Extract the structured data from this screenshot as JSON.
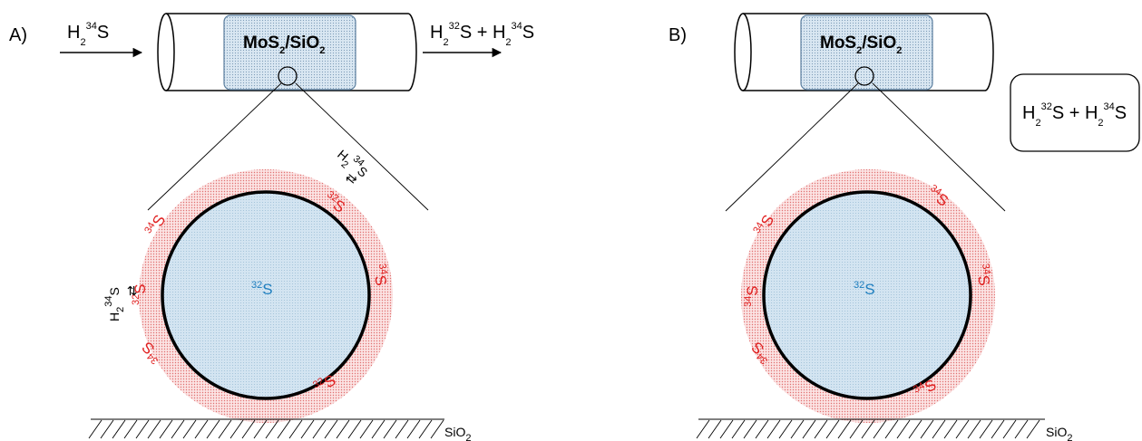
{
  "panel_a": {
    "label": "A)",
    "inlet": {
      "base": "H",
      "sub": "2",
      "sup": "34",
      "tail": "S"
    },
    "outlet": {
      "p1_base": "H",
      "p1_sub": "2",
      "p1_sup": "32",
      "p1_tail": "S",
      "plus": " + ",
      "p2_base": "H",
      "p2_sub": "2",
      "p2_sup": "34",
      "p2_tail": "S"
    },
    "reactor": {
      "base": "MoS",
      "sub1": "2",
      "mid": "/SiO",
      "sub2": "2"
    },
    "core": {
      "sup": "32",
      "base": "S"
    },
    "shell_top_right": {
      "sup": "32",
      "base": "S"
    },
    "shell_upper_left": {
      "sup": "34",
      "base": "S"
    },
    "shell_left": {
      "sup": "32",
      "base": "S"
    },
    "shell_right": {
      "sup": "34",
      "base": "S"
    },
    "shell_lower_left": {
      "sup": "34",
      "base": "S"
    },
    "shell_lower_right": {
      "sup": "32",
      "base": "S"
    },
    "gas_top": {
      "base": "H",
      "sub": "2",
      "sup": "34",
      "tail": "S"
    },
    "gas_left": {
      "base": "H",
      "sub": "2",
      "sup": "34",
      "tail": "S"
    },
    "exchange_symbol": "⇄",
    "substrate": {
      "base": "SiO",
      "sub": "2"
    }
  },
  "panel_b": {
    "label": "B)",
    "reactor": {
      "base": "MoS",
      "sub1": "2",
      "mid": "/SiO",
      "sub2": "2"
    },
    "box": {
      "p1_base": "H",
      "p1_sub": "2",
      "p1_sup": "32",
      "p1_tail": "S",
      "plus": " + ",
      "p2_base": "H",
      "p2_sub": "2",
      "p2_sup": "34",
      "p2_tail": "S"
    },
    "core": {
      "sup": "32",
      "base": "S"
    },
    "shell_upper_right": {
      "sup": "34",
      "base": "S"
    },
    "shell_upper_left": {
      "sup": "34",
      "base": "S"
    },
    "shell_right": {
      "sup": "34",
      "base": "S"
    },
    "shell_left": {
      "sup": "34",
      "base": "S"
    },
    "shell_lower_left": {
      "sup": "34",
      "base": "S"
    },
    "shell_lower_right": {
      "sup": "34",
      "base": "S"
    },
    "substrate": {
      "base": "SiO",
      "sub": "2"
    }
  },
  "colors": {
    "shell": "#e05050",
    "core": "#c9dff0",
    "reactor_fill": "#d6e6f2",
    "isotope_red": "#e02020",
    "isotope_blue": "#1f7fbf"
  }
}
